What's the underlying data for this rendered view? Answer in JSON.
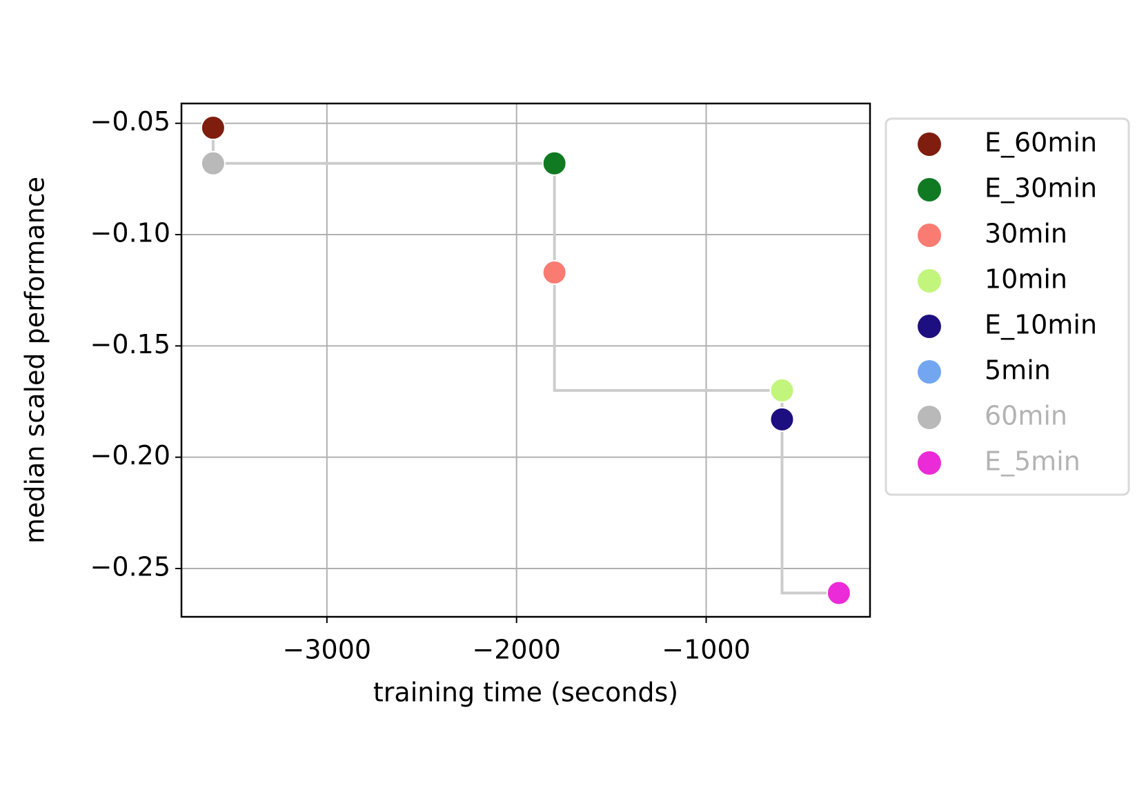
{
  "chart_data": {
    "type": "scatter",
    "x_label": "training time (seconds)",
    "y_label": "median scaled performance",
    "xlim": [
      -3767,
      -136
    ],
    "ylim": [
      -0.2717,
      -0.0411
    ],
    "xticks": [
      {
        "value": -3000,
        "label": "−3000"
      },
      {
        "value": -2000,
        "label": "−2000"
      },
      {
        "value": -1000,
        "label": "−1000"
      }
    ],
    "yticks": [
      {
        "value": -0.05,
        "label": "−0.05"
      },
      {
        "value": -0.1,
        "label": "−0.10"
      },
      {
        "value": -0.15,
        "label": "−0.15"
      },
      {
        "value": -0.2,
        "label": "−0.20"
      },
      {
        "value": -0.25,
        "label": "−0.25"
      }
    ],
    "grid": true,
    "legend": "outside-right",
    "frontier": {
      "color": "#cccccc",
      "steps": "pre",
      "x": [
        -3600,
        -3600,
        -1800,
        -1800,
        -600,
        -600,
        -300
      ],
      "y": [
        -0.052,
        -0.068,
        -0.068,
        -0.117,
        -0.17,
        -0.183,
        -0.261
      ]
    },
    "series": [
      {
        "name": "E_60min",
        "color": "#7f1d0e",
        "label_color": "#000000",
        "x": [
          -3600
        ],
        "values": [
          -0.052
        ]
      },
      {
        "name": "E_30min",
        "color": "#0f7a22",
        "label_color": "#000000",
        "x": [
          -1800
        ],
        "values": [
          -0.068
        ]
      },
      {
        "name": "30min",
        "color": "#f97b72",
        "label_color": "#000000",
        "x": [
          -1800
        ],
        "values": [
          -0.117
        ]
      },
      {
        "name": "10min",
        "color": "#c2f57c",
        "label_color": "#000000",
        "x": [
          -600
        ],
        "values": [
          -0.17
        ]
      },
      {
        "name": "E_10min",
        "color": "#1d0f7f",
        "label_color": "#000000",
        "x": [
          -600
        ],
        "values": [
          -0.183
        ]
      },
      {
        "name": "5min",
        "color": "#72a6f0",
        "label_color": "#000000",
        "x": [
          null
        ],
        "values": [
          null
        ]
      },
      {
        "name": "60min",
        "color": "#b9b9b9",
        "label_color": "#b3b3b3",
        "x": [
          -3600
        ],
        "values": [
          -0.068
        ]
      },
      {
        "name": "E_5min",
        "color": "#eb2ad8",
        "label_color": "#b3b3b3",
        "x": [
          -300
        ],
        "values": [
          -0.261
        ]
      }
    ]
  }
}
